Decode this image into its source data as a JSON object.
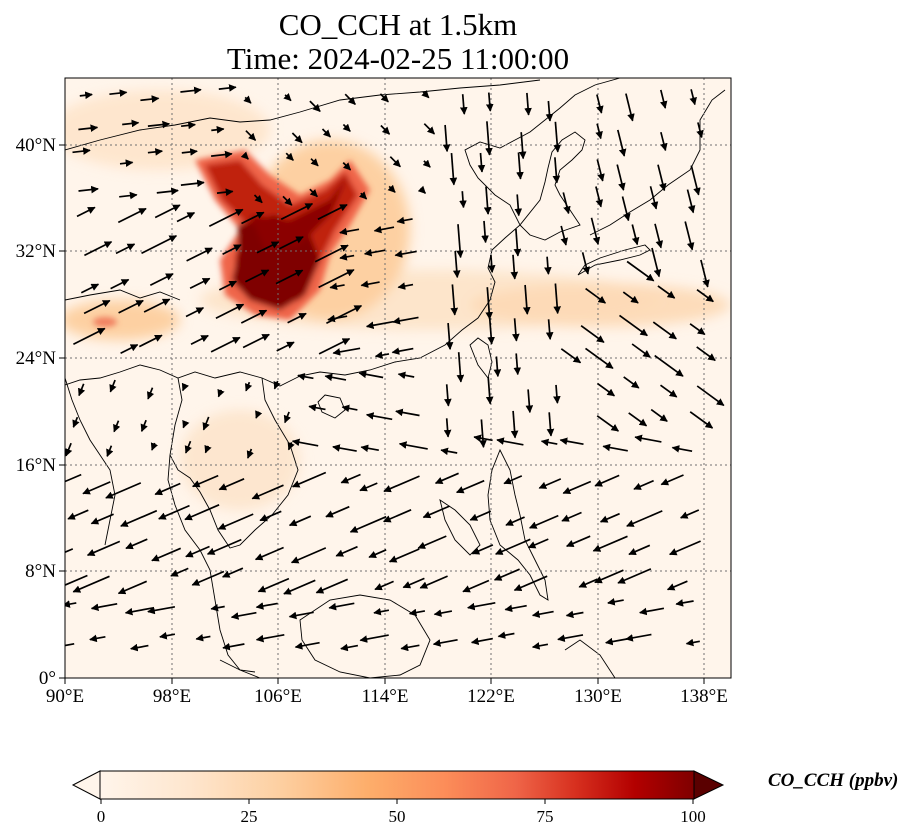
{
  "title": {
    "line1": "CO_CCH at 1.5km",
    "line2": "Time: 2024-02-25 11:00:00"
  },
  "map": {
    "lon_range": [
      90,
      140
    ],
    "lat_range": [
      0,
      45
    ],
    "lon_ticks": [
      "90°E",
      "98°E",
      "106°E",
      "114°E",
      "122°E",
      "130°E",
      "138°E"
    ],
    "lat_ticks": [
      "0°",
      "8°N",
      "16°N",
      "24°N",
      "32°N",
      "40°N"
    ],
    "gridlines": true,
    "coastlines": true,
    "background_color": "#fff5eb"
  },
  "field": {
    "variable": "CO_CCH",
    "units": "ppbv",
    "high_region": "Sichuan Basin and central China, ~102–112°E, 26–38°N",
    "moderate_band": "eastward plume along ~28–30°N to ~135°E"
  },
  "colorbar": {
    "label": "CO_CCH (ppbv)",
    "colormap": "OrRd",
    "min": 0,
    "max": 100,
    "ticks": [
      "0",
      "25",
      "50",
      "75",
      "100"
    ],
    "extend": "both",
    "colors": [
      "#fff5eb",
      "#fee6ce",
      "#fdd0a2",
      "#fdae6b",
      "#fd8d3c",
      "#f16913",
      "#d94801",
      "#a63603",
      "#7f2704",
      "#5a0000"
    ]
  },
  "wind": {
    "description": "black wind vectors; NE flow over South China Sea, westerlies over Tibet/central China, northerlies over East China Sea"
  }
}
